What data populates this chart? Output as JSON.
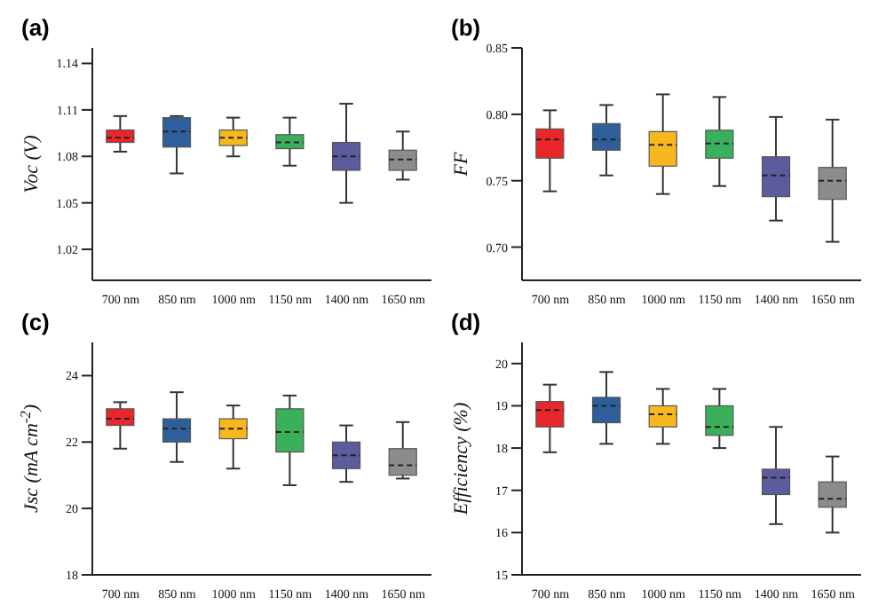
{
  "chart_data": [
    {
      "type": "box",
      "title": "(a)",
      "ylabel": "Voc (V)",
      "categories": [
        "700 nm",
        "850 nm",
        "1000 nm",
        "1150 nm",
        "1400 nm",
        "1650 nm"
      ],
      "colors": [
        "#e8262b",
        "#2e5f9a",
        "#f7b81f",
        "#3ab05a",
        "#5b5b9e",
        "#8c8c8c"
      ],
      "ylim": [
        1.0,
        1.15
      ],
      "yticks": [
        1.02,
        1.05,
        1.08,
        1.11,
        1.14
      ],
      "boxes": [
        {
          "low": 1.083,
          "q1": 1.089,
          "median": 1.092,
          "q3": 1.097,
          "high": 1.106
        },
        {
          "low": 1.069,
          "q1": 1.086,
          "median": 1.096,
          "q3": 1.105,
          "high": 1.106
        },
        {
          "low": 1.08,
          "q1": 1.087,
          "median": 1.092,
          "q3": 1.097,
          "high": 1.105
        },
        {
          "low": 1.074,
          "q1": 1.085,
          "median": 1.089,
          "q3": 1.094,
          "high": 1.105
        },
        {
          "low": 1.05,
          "q1": 1.071,
          "median": 1.08,
          "q3": 1.089,
          "high": 1.114
        },
        {
          "low": 1.065,
          "q1": 1.071,
          "median": 1.078,
          "q3": 1.084,
          "high": 1.096
        }
      ]
    },
    {
      "type": "box",
      "title": "(b)",
      "ylabel": "FF",
      "categories": [
        "700 nm",
        "850 nm",
        "1000 nm",
        "1150 nm",
        "1400 nm",
        "1650 nm"
      ],
      "colors": [
        "#e8262b",
        "#2e5f9a",
        "#f7b81f",
        "#3ab05a",
        "#5b5b9e",
        "#8c8c8c"
      ],
      "ylim": [
        0.675,
        0.85
      ],
      "yticks": [
        {
          "value": 0.7,
          "label": "0.70"
        },
        0.75,
        {
          "value": 0.8,
          "label": "0.80"
        },
        0.85
      ],
      "boxes": [
        {
          "low": 0.742,
          "q1": 0.767,
          "median": 0.781,
          "q3": 0.789,
          "high": 0.803
        },
        {
          "low": 0.754,
          "q1": 0.773,
          "median": 0.781,
          "q3": 0.793,
          "high": 0.807
        },
        {
          "low": 0.74,
          "q1": 0.761,
          "median": 0.777,
          "q3": 0.787,
          "high": 0.815
        },
        {
          "low": 0.746,
          "q1": 0.767,
          "median": 0.778,
          "q3": 0.788,
          "high": 0.813
        },
        {
          "low": 0.72,
          "q1": 0.738,
          "median": 0.754,
          "q3": 0.768,
          "high": 0.798
        },
        {
          "low": 0.704,
          "q1": 0.736,
          "median": 0.75,
          "q3": 0.76,
          "high": 0.796
        }
      ]
    },
    {
      "type": "box",
      "title": "(c)",
      "ylabel": "Jsc (mA cm$^{-2}$)",
      "categories": [
        "700 nm",
        "850 nm",
        "1000 nm",
        "1150 nm",
        "1400 nm",
        "1650 nm"
      ],
      "colors": [
        "#e8262b",
        "#2e5f9a",
        "#f7b81f",
        "#3ab05a",
        "#5b5b9e",
        "#8c8c8c"
      ],
      "ylim": [
        18,
        25
      ],
      "yticks": [
        18,
        20,
        22,
        24
      ],
      "boxes": [
        {
          "low": 21.8,
          "q1": 22.5,
          "median": 22.7,
          "q3": 23.0,
          "high": 23.2
        },
        {
          "low": 21.4,
          "q1": 22.0,
          "median": 22.4,
          "q3": 22.7,
          "high": 23.5
        },
        {
          "low": 21.2,
          "q1": 22.1,
          "median": 22.4,
          "q3": 22.7,
          "high": 23.1
        },
        {
          "low": 20.7,
          "q1": 21.7,
          "median": 22.3,
          "q3": 23.0,
          "high": 23.4
        },
        {
          "low": 20.8,
          "q1": 21.2,
          "median": 21.6,
          "q3": 22.0,
          "high": 22.5
        },
        {
          "low": 20.9,
          "q1": 21.0,
          "median": 21.3,
          "q3": 21.8,
          "high": 22.6
        }
      ]
    },
    {
      "type": "box",
      "title": "(d)",
      "ylabel": "Efficiency (%)",
      "categories": [
        "700 nm",
        "850 nm",
        "1000 nm",
        "1150 nm",
        "1400 nm",
        "1650 nm"
      ],
      "colors": [
        "#e8262b",
        "#2e5f9a",
        "#f7b81f",
        "#3ab05a",
        "#5b5b9e",
        "#8c8c8c"
      ],
      "ylim": [
        15,
        20.5
      ],
      "yticks": [
        15,
        16,
        17,
        18,
        19,
        20
      ],
      "boxes": [
        {
          "low": 17.9,
          "q1": 18.5,
          "median": 18.9,
          "q3": 19.1,
          "high": 19.5
        },
        {
          "low": 18.1,
          "q1": 18.6,
          "median": 19.0,
          "q3": 19.2,
          "high": 19.8
        },
        {
          "low": 18.1,
          "q1": 18.5,
          "median": 18.8,
          "q3": 19.0,
          "high": 19.4
        },
        {
          "low": 18.0,
          "q1": 18.3,
          "median": 18.5,
          "q3": 19.0,
          "high": 19.4
        },
        {
          "low": 16.2,
          "q1": 16.9,
          "median": 17.3,
          "q3": 17.5,
          "high": 18.5
        },
        {
          "low": 16.0,
          "q1": 16.6,
          "median": 16.8,
          "q3": 17.2,
          "high": 17.8
        }
      ]
    }
  ]
}
